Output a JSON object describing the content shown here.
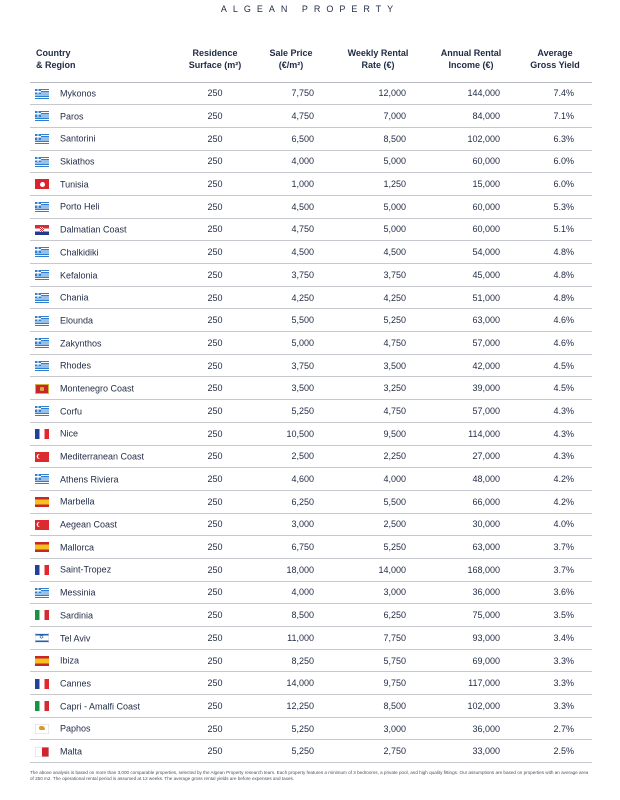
{
  "brand": "ALGEAN PROPERTY",
  "headers": {
    "country": [
      "Country",
      "& Region"
    ],
    "surface": [
      "Residence",
      "Surface (m²)"
    ],
    "price": [
      "Sale Price",
      "(€/m²)"
    ],
    "weekly": [
      "Weekly Rental",
      "Rate (€)"
    ],
    "annual": [
      "Annual Rental",
      "Income (€)"
    ],
    "yield": [
      "Average",
      "Gross Yield"
    ]
  },
  "rows": [
    {
      "flag": "gr",
      "region": "Mykonos",
      "surface": "250",
      "price": "7,750",
      "weekly": "12,000",
      "annual": "144,000",
      "yield": "7.4%"
    },
    {
      "flag": "gr",
      "region": "Paros",
      "surface": "250",
      "price": "4,750",
      "weekly": "7,000",
      "annual": "84,000",
      "yield": "7.1%"
    },
    {
      "flag": "gr",
      "region": "Santorini",
      "surface": "250",
      "price": "6,500",
      "weekly": "8,500",
      "annual": "102,000",
      "yield": "6.3%"
    },
    {
      "flag": "gr",
      "region": "Skiathos",
      "surface": "250",
      "price": "4,000",
      "weekly": "5,000",
      "annual": "60,000",
      "yield": "6.0%"
    },
    {
      "flag": "tn",
      "region": "Tunisia",
      "surface": "250",
      "price": "1,000",
      "weekly": "1,250",
      "annual": "15,000",
      "yield": "6.0%"
    },
    {
      "flag": "gr",
      "region": "Porto Heli",
      "surface": "250",
      "price": "4,500",
      "weekly": "5,000",
      "annual": "60,000",
      "yield": "5.3%"
    },
    {
      "flag": "hr",
      "region": "Dalmatian Coast",
      "surface": "250",
      "price": "4,750",
      "weekly": "5,000",
      "annual": "60,000",
      "yield": "5.1%"
    },
    {
      "flag": "gr",
      "region": "Chalkidiki",
      "surface": "250",
      "price": "4,500",
      "weekly": "4,500",
      "annual": "54,000",
      "yield": "4.8%"
    },
    {
      "flag": "gr",
      "region": "Kefalonia",
      "surface": "250",
      "price": "3,750",
      "weekly": "3,750",
      "annual": "45,000",
      "yield": "4.8%"
    },
    {
      "flag": "gr",
      "region": "Chania",
      "surface": "250",
      "price": "4,250",
      "weekly": "4,250",
      "annual": "51,000",
      "yield": "4.8%"
    },
    {
      "flag": "gr",
      "region": "Elounda",
      "surface": "250",
      "price": "5,500",
      "weekly": "5,250",
      "annual": "63,000",
      "yield": "4.6%"
    },
    {
      "flag": "gr",
      "region": "Zakynthos",
      "surface": "250",
      "price": "5,000",
      "weekly": "4,750",
      "annual": "57,000",
      "yield": "4.6%"
    },
    {
      "flag": "gr",
      "region": "Rhodes",
      "surface": "250",
      "price": "3,750",
      "weekly": "3,500",
      "annual": "42,000",
      "yield": "4.5%"
    },
    {
      "flag": "me",
      "region": "Montenegro Coast",
      "surface": "250",
      "price": "3,500",
      "weekly": "3,250",
      "annual": "39,000",
      "yield": "4.5%"
    },
    {
      "flag": "gr",
      "region": "Corfu",
      "surface": "250",
      "price": "5,250",
      "weekly": "4,750",
      "annual": "57,000",
      "yield": "4.3%"
    },
    {
      "flag": "fr",
      "region": "Nice",
      "surface": "250",
      "price": "10,500",
      "weekly": "9,500",
      "annual": "114,000",
      "yield": "4.3%"
    },
    {
      "flag": "tr",
      "region": "Mediterranean Coast",
      "surface": "250",
      "price": "2,500",
      "weekly": "2,250",
      "annual": "27,000",
      "yield": "4.3%"
    },
    {
      "flag": "gr",
      "region": "Athens Riviera",
      "surface": "250",
      "price": "4,600",
      "weekly": "4,000",
      "annual": "48,000",
      "yield": "4.2%"
    },
    {
      "flag": "es",
      "region": "Marbella",
      "surface": "250",
      "price": "6,250",
      "weekly": "5,500",
      "annual": "66,000",
      "yield": "4.2%"
    },
    {
      "flag": "tr",
      "region": "Aegean Coast",
      "surface": "250",
      "price": "3,000",
      "weekly": "2,500",
      "annual": "30,000",
      "yield": "4.0%"
    },
    {
      "flag": "es",
      "region": "Mallorca",
      "surface": "250",
      "price": "6,750",
      "weekly": "5,250",
      "annual": "63,000",
      "yield": "3.7%"
    },
    {
      "flag": "fr",
      "region": "Saint-Tropez",
      "surface": "250",
      "price": "18,000",
      "weekly": "14,000",
      "annual": "168,000",
      "yield": "3.7%"
    },
    {
      "flag": "gr",
      "region": "Messinia",
      "surface": "250",
      "price": "4,000",
      "weekly": "3,000",
      "annual": "36,000",
      "yield": "3.6%"
    },
    {
      "flag": "it",
      "region": "Sardinia",
      "surface": "250",
      "price": "8,500",
      "weekly": "6,250",
      "annual": "75,000",
      "yield": "3.5%"
    },
    {
      "flag": "il",
      "region": "Tel Aviv",
      "surface": "250",
      "price": "11,000",
      "weekly": "7,750",
      "annual": "93,000",
      "yield": "3.4%"
    },
    {
      "flag": "es",
      "region": "Ibiza",
      "surface": "250",
      "price": "8,250",
      "weekly": "5,750",
      "annual": "69,000",
      "yield": "3.3%"
    },
    {
      "flag": "fr",
      "region": "Cannes",
      "surface": "250",
      "price": "14,000",
      "weekly": "9,750",
      "annual": "117,000",
      "yield": "3.3%"
    },
    {
      "flag": "it",
      "region": "Capri - Amalfi Coast",
      "surface": "250",
      "price": "12,250",
      "weekly": "8,500",
      "annual": "102,000",
      "yield": "3.3%"
    },
    {
      "flag": "cy",
      "region": "Paphos",
      "surface": "250",
      "price": "5,250",
      "weekly": "3,000",
      "annual": "36,000",
      "yield": "2.7%"
    },
    {
      "flag": "mt",
      "region": "Malta",
      "surface": "250",
      "price": "5,250",
      "weekly": "2,750",
      "annual": "33,000",
      "yield": "2.5%"
    }
  ],
  "footnote": "The above analysis is based on more than 3,000 comparable properties, selected by the Algean Property research team. Each property features a minimum of 3 bedrooms, a private pool, and high quality fittings. Our assumptions are based on properties with an average area of 250 m2. The operational rental period is assumed at 12 weeks. The average gross rental yields are before expenses and taxes.",
  "colors": {
    "text": "#1f2a44",
    "rule": "#c6c8ce"
  }
}
